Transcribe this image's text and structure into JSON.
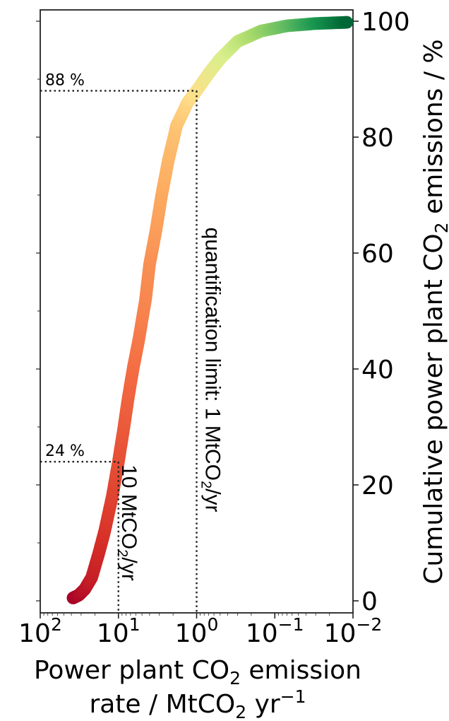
{
  "chart_data": {
    "type": "scatter",
    "xlabel": {
      "line1_prefix": "Power plant CO",
      "line1_sub": "2",
      "line1_suffix": " emission",
      "line2_prefix": "rate / MtCO",
      "line2_sub": "2",
      "line2_unit": " yr",
      "line2_sup": "−1"
    },
    "ylabel": {
      "prefix": "Cumulative power plant CO",
      "sub": "2",
      "suffix": " emissions / %"
    },
    "x_scale": "log",
    "x_reversed": true,
    "xlim": [
      100,
      0.01
    ],
    "ylim": [
      0,
      100
    ],
    "y_axis_position": "right",
    "x_ticks": [
      {
        "value": 100,
        "base": "10",
        "exp": "2"
      },
      {
        "value": 10,
        "base": "10",
        "exp": "1"
      },
      {
        "value": 1,
        "base": "10",
        "exp": "0"
      },
      {
        "value": 0.1,
        "base": "10",
        "exp": "−1"
      },
      {
        "value": 0.01,
        "base": "10",
        "exp": "−2"
      }
    ],
    "y_ticks": [
      "0",
      "20",
      "40",
      "60",
      "80",
      "100"
    ],
    "colormap": [
      "#a50026",
      "#d73027",
      "#f46d43",
      "#fdae61",
      "#fee08b",
      "#d9ef8b",
      "#a6d96a",
      "#66bd63",
      "#1a9850",
      "#006837"
    ],
    "curve": [
      {
        "x": 38,
        "y": 0.5
      },
      {
        "x": 32,
        "y": 1
      },
      {
        "x": 27,
        "y": 2
      },
      {
        "x": 22,
        "y": 4
      },
      {
        "x": 18,
        "y": 8
      },
      {
        "x": 15,
        "y": 12
      },
      {
        "x": 12,
        "y": 18
      },
      {
        "x": 10,
        "y": 24
      },
      {
        "x": 8.5,
        "y": 30
      },
      {
        "x": 7.5,
        "y": 35
      },
      {
        "x": 6.5,
        "y": 40
      },
      {
        "x": 5.5,
        "y": 45
      },
      {
        "x": 4.5,
        "y": 52
      },
      {
        "x": 4,
        "y": 58
      },
      {
        "x": 3.3,
        "y": 64
      },
      {
        "x": 2.8,
        "y": 70
      },
      {
        "x": 2.3,
        "y": 76
      },
      {
        "x": 1.8,
        "y": 82
      },
      {
        "x": 1.3,
        "y": 86
      },
      {
        "x": 1.0,
        "y": 88
      },
      {
        "x": 0.7,
        "y": 91
      },
      {
        "x": 0.5,
        "y": 93.5
      },
      {
        "x": 0.3,
        "y": 96.5
      },
      {
        "x": 0.15,
        "y": 98.3
      },
      {
        "x": 0.07,
        "y": 99.2
      },
      {
        "x": 0.03,
        "y": 99.6
      },
      {
        "x": 0.012,
        "y": 99.8
      }
    ],
    "reference_lines": [
      {
        "x": 10,
        "y": 24,
        "y_label": "24 %",
        "line_label_prefix": "10 MtCO",
        "line_label_sub": "2",
        "line_label_suffix": "/yr"
      },
      {
        "x": 1,
        "y": 88,
        "y_label": "88 %",
        "line_label_prefix": "quantification limit: 1 MtCO",
        "line_label_sub": "2",
        "line_label_suffix": "/yr"
      }
    ]
  }
}
